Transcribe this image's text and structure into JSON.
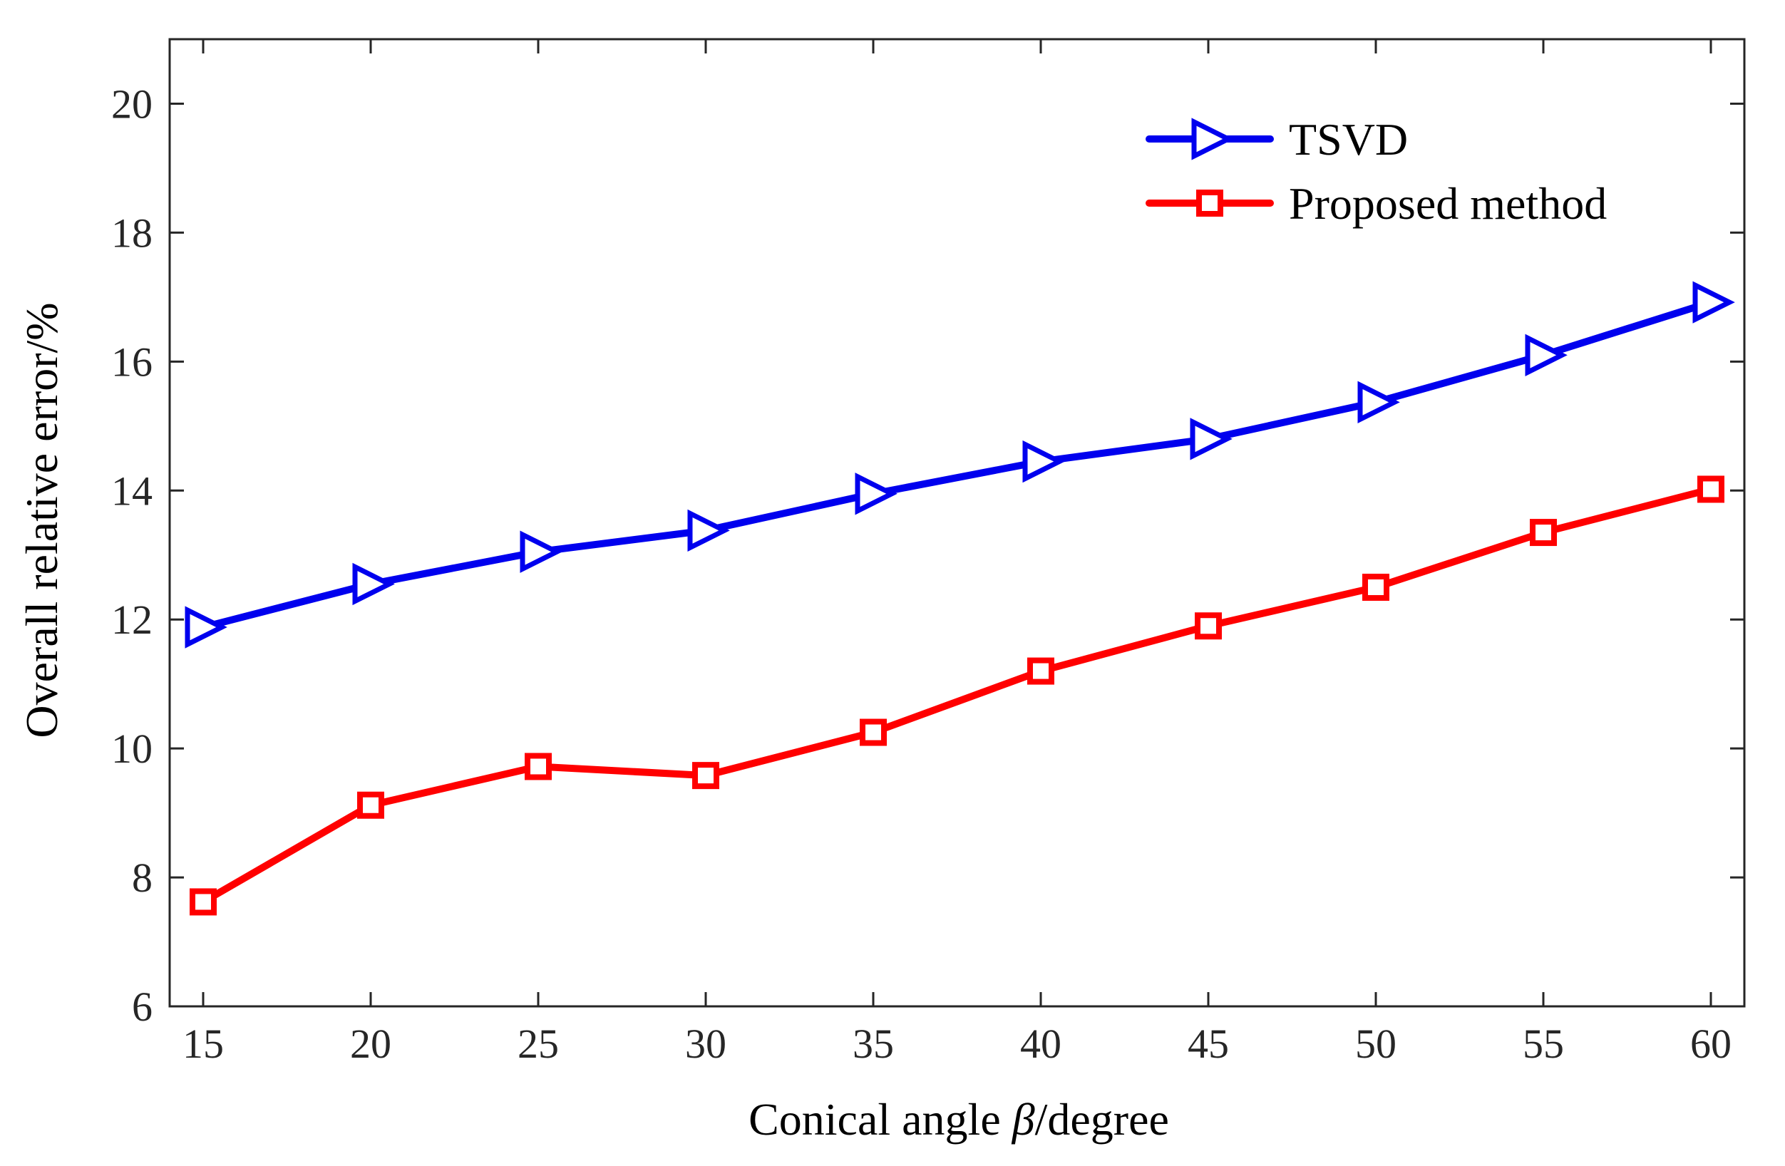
{
  "chart_data": {
    "type": "line",
    "title": "",
    "xlabel": "Conical angle β/degree",
    "xlabel_parts": {
      "prefix": "Conical angle ",
      "symbol": "β",
      "suffix": "/degree"
    },
    "ylabel": "Overall relative error/%",
    "x": [
      15,
      20,
      25,
      30,
      35,
      40,
      45,
      50,
      55,
      60
    ],
    "xlim": [
      14,
      61
    ],
    "ylim": [
      6,
      21
    ],
    "xticks": [
      15,
      20,
      25,
      30,
      35,
      40,
      45,
      50,
      55,
      60
    ],
    "yticks": [
      6,
      8,
      10,
      12,
      14,
      16,
      18,
      20
    ],
    "grid": false,
    "legend_position": "top-right",
    "series": [
      {
        "name": "TSVD",
        "color": "#0000ee",
        "marker": "triangle-right",
        "values": [
          11.88,
          12.55,
          13.05,
          13.38,
          13.95,
          14.45,
          14.8,
          15.37,
          16.1,
          16.92
        ]
      },
      {
        "name": "Proposed method",
        "color": "#ff0000",
        "marker": "square",
        "values": [
          7.62,
          9.12,
          9.72,
          9.58,
          10.25,
          11.2,
          11.9,
          12.5,
          13.35,
          14.02
        ]
      }
    ]
  }
}
